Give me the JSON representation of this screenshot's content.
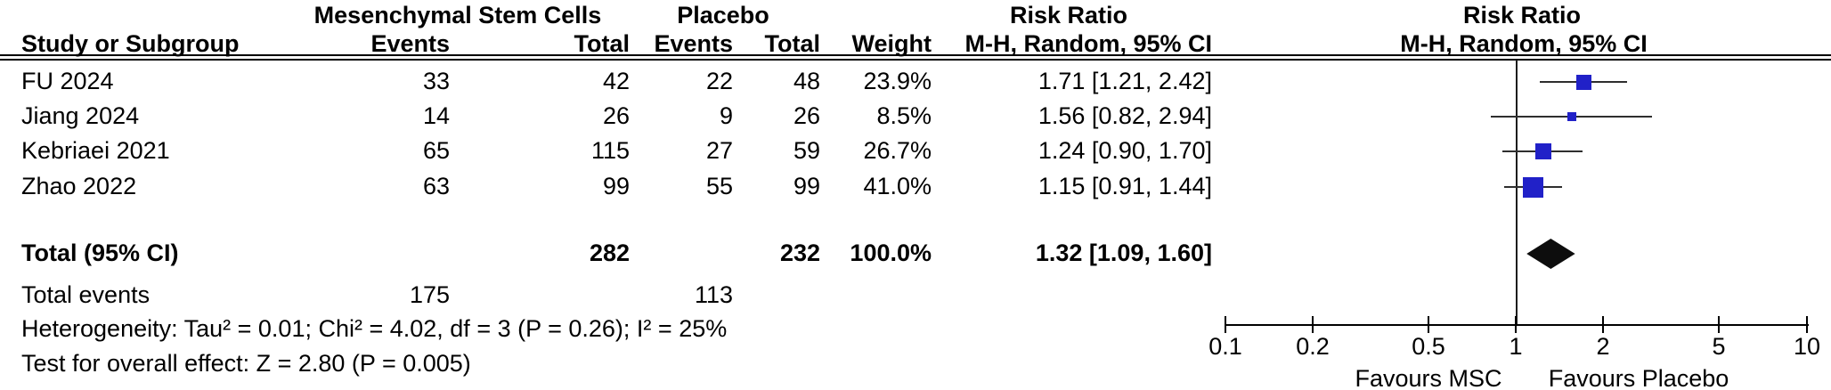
{
  "header": {
    "group_msc": "Mesenchymal Stem Cells",
    "group_placebo": "Placebo",
    "group_risk_ratio_left": "Risk Ratio",
    "group_risk_ratio_right": "Risk Ratio",
    "col_study": "Study or Subgroup",
    "col_events_msc": "Events",
    "col_total_msc": "Total",
    "col_events_placebo": "Events",
    "col_total_placebo": "Total",
    "col_weight": "Weight",
    "col_ci_left": "M-H, Random, 95% CI",
    "col_ci_right": "M-H, Random, 95% CI"
  },
  "footer": {
    "total_label": "Total (95% CI)",
    "total_events_label": "Total events",
    "heterogeneity": "Heterogeneity: Tau² = 0.01; Chi² = 4.02, df = 3 (P = 0.26); I² = 25%",
    "overall_effect": "Test for overall effect: Z = 2.80 (P = 0.005)"
  },
  "colors": {
    "square": "#2121c8",
    "diamond": "#0d0d0d",
    "ci_line": "#2e2e2e",
    "text": "#000000"
  },
  "chart_data": {
    "type": "forest",
    "effect_measure": "Risk Ratio",
    "method": "M-H, Random, 95% CI",
    "x_scale": "log10",
    "axis_range": [
      0.1,
      10
    ],
    "axis_ticks": [
      "0.1",
      "0.2",
      "0.5",
      "1",
      "2",
      "5",
      "10"
    ],
    "axis_tick_values": [
      0.1,
      0.2,
      0.5,
      1,
      2,
      5,
      10
    ],
    "favours_left": "Favours MSC",
    "favours_right": "Favours Placebo",
    "studies": [
      {
        "name": "FU 2024",
        "msc_events": "33",
        "msc_total": "42",
        "placebo_events": "22",
        "placebo_total": "48",
        "weight": "23.9%",
        "weight_value": 23.9,
        "ci_text": "1.71 [1.21, 2.42]",
        "rr": 1.71,
        "ci_low": 1.21,
        "ci_high": 2.42
      },
      {
        "name": "Jiang 2024",
        "msc_events": "14",
        "msc_total": "26",
        "placebo_events": "9",
        "placebo_total": "26",
        "weight": "8.5%",
        "weight_value": 8.5,
        "ci_text": "1.56 [0.82, 2.94]",
        "rr": 1.56,
        "ci_low": 0.82,
        "ci_high": 2.94
      },
      {
        "name": "Kebriaei 2021",
        "msc_events": "65",
        "msc_total": "115",
        "placebo_events": "27",
        "placebo_total": "59",
        "weight": "26.7%",
        "weight_value": 26.7,
        "ci_text": "1.24 [0.90, 1.70]",
        "rr": 1.24,
        "ci_low": 0.9,
        "ci_high": 1.7
      },
      {
        "name": "Zhao 2022",
        "msc_events": "63",
        "msc_total": "99",
        "placebo_events": "55",
        "placebo_total": "99",
        "weight": "41.0%",
        "weight_value": 41.0,
        "ci_text": "1.15 [0.91, 1.44]",
        "rr": 1.15,
        "ci_low": 0.91,
        "ci_high": 1.44
      }
    ],
    "total": {
      "msc_total": "282",
      "placebo_total": "232",
      "weight": "100.0%",
      "ci_text": "1.32 [1.09, 1.60]",
      "rr": 1.32,
      "ci_low": 1.09,
      "ci_high": 1.6,
      "msc_events": "175",
      "placebo_events": "113"
    }
  }
}
